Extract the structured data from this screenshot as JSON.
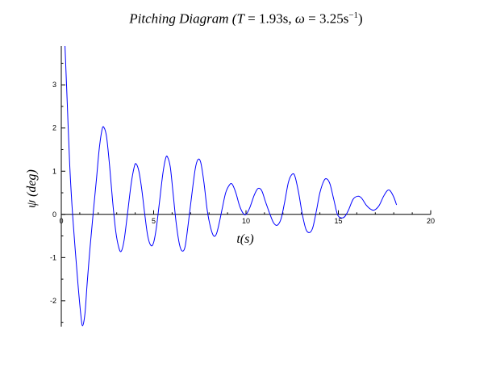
{
  "chart_data": {
    "type": "line",
    "title": {
      "prefix": "Pitching Diagram (",
      "t_part": "T",
      "t_value": " = 1.93s, ",
      "omega_part": "ω",
      "omega_value": " = 3.25s",
      "omega_exp": "−1",
      "suffix": ")"
    },
    "xlabel": "t(s)",
    "ylabel": "ψ (deg)",
    "xlim": [
      0,
      20
    ],
    "ylim": [
      -2.6,
      3.9
    ],
    "x_ticks": [
      0,
      5,
      10,
      15,
      20
    ],
    "y_ticks": [
      -2,
      -1,
      0,
      1,
      2,
      3
    ],
    "x_tick_labels": [
      "0",
      "5",
      "10",
      "15",
      "20"
    ],
    "y_tick_labels": [
      "-2",
      "-1",
      "0",
      "1",
      "2",
      "3"
    ],
    "grid": false,
    "color": "#0000ff",
    "series": [
      {
        "points": [
          [
            0.2,
            3.9
          ],
          [
            0.32,
            2.6
          ],
          [
            0.45,
            1.2
          ],
          [
            0.58,
            0.2
          ],
          [
            0.75,
            -0.8
          ],
          [
            0.9,
            -1.6
          ],
          [
            1.05,
            -2.3
          ],
          [
            1.15,
            -2.58
          ],
          [
            1.28,
            -2.3
          ],
          [
            1.4,
            -1.6
          ],
          [
            1.55,
            -0.8
          ],
          [
            1.72,
            0.0
          ],
          [
            1.9,
            0.8
          ],
          [
            2.05,
            1.5
          ],
          [
            2.2,
            1.95
          ],
          [
            2.3,
            2.02
          ],
          [
            2.45,
            1.8
          ],
          [
            2.62,
            1.1
          ],
          [
            2.78,
            0.3
          ],
          [
            2.95,
            -0.4
          ],
          [
            3.12,
            -0.78
          ],
          [
            3.25,
            -0.85
          ],
          [
            3.4,
            -0.6
          ],
          [
            3.58,
            0.0
          ],
          [
            3.78,
            0.7
          ],
          [
            3.95,
            1.1
          ],
          [
            4.05,
            1.17
          ],
          [
            4.2,
            1.0
          ],
          [
            4.35,
            0.6
          ],
          [
            4.52,
            0.0
          ],
          [
            4.68,
            -0.5
          ],
          [
            4.85,
            -0.72
          ],
          [
            5.0,
            -0.65
          ],
          [
            5.15,
            -0.3
          ],
          [
            5.32,
            0.3
          ],
          [
            5.5,
            0.95
          ],
          [
            5.65,
            1.3
          ],
          [
            5.75,
            1.33
          ],
          [
            5.9,
            1.1
          ],
          [
            6.05,
            0.5
          ],
          [
            6.22,
            -0.2
          ],
          [
            6.4,
            -0.7
          ],
          [
            6.55,
            -0.85
          ],
          [
            6.7,
            -0.75
          ],
          [
            6.85,
            -0.3
          ],
          [
            7.05,
            0.4
          ],
          [
            7.25,
            1.05
          ],
          [
            7.4,
            1.27
          ],
          [
            7.55,
            1.2
          ],
          [
            7.72,
            0.75
          ],
          [
            7.9,
            0.1
          ],
          [
            8.08,
            -0.3
          ],
          [
            8.25,
            -0.5
          ],
          [
            8.4,
            -0.45
          ],
          [
            8.55,
            -0.2
          ],
          [
            8.72,
            0.15
          ],
          [
            8.9,
            0.5
          ],
          [
            9.1,
            0.68
          ],
          [
            9.25,
            0.7
          ],
          [
            9.45,
            0.5
          ],
          [
            9.65,
            0.2
          ],
          [
            9.85,
            0.02
          ],
          [
            10.0,
            0.0
          ],
          [
            10.2,
            0.15
          ],
          [
            10.45,
            0.45
          ],
          [
            10.65,
            0.6
          ],
          [
            10.85,
            0.55
          ],
          [
            11.05,
            0.3
          ],
          [
            11.3,
            0.0
          ],
          [
            11.5,
            -0.2
          ],
          [
            11.7,
            -0.25
          ],
          [
            11.9,
            -0.1
          ],
          [
            12.1,
            0.3
          ],
          [
            12.3,
            0.75
          ],
          [
            12.5,
            0.93
          ],
          [
            12.65,
            0.88
          ],
          [
            12.85,
            0.5
          ],
          [
            13.05,
            0.0
          ],
          [
            13.25,
            -0.35
          ],
          [
            13.45,
            -0.42
          ],
          [
            13.62,
            -0.3
          ],
          [
            13.82,
            0.1
          ],
          [
            14.0,
            0.5
          ],
          [
            14.22,
            0.78
          ],
          [
            14.38,
            0.82
          ],
          [
            14.55,
            0.7
          ],
          [
            14.75,
            0.35
          ],
          [
            14.95,
            0.0
          ],
          [
            15.15,
            -0.08
          ],
          [
            15.35,
            -0.05
          ],
          [
            15.55,
            0.1
          ],
          [
            15.8,
            0.35
          ],
          [
            16.05,
            0.42
          ],
          [
            16.25,
            0.38
          ],
          [
            16.5,
            0.22
          ],
          [
            16.75,
            0.12
          ],
          [
            16.95,
            0.1
          ],
          [
            17.2,
            0.2
          ],
          [
            17.45,
            0.42
          ],
          [
            17.65,
            0.55
          ],
          [
            17.8,
            0.55
          ],
          [
            18.0,
            0.4
          ],
          [
            18.15,
            0.22
          ]
        ]
      }
    ]
  }
}
